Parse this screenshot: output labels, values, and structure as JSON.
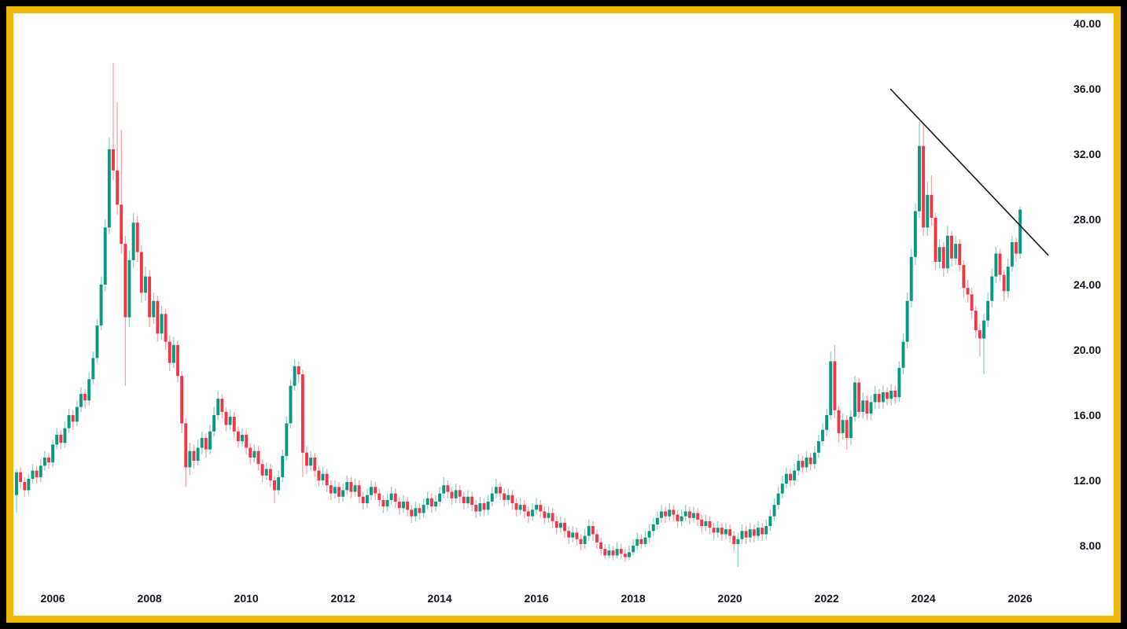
{
  "frame": {
    "outer_color": "#000000",
    "border_color": "#F0B90B",
    "background_color": "#FFFFFF",
    "text_color": "#131722"
  },
  "chart_data": {
    "type": "candlestick",
    "title": "",
    "interval": "monthly",
    "start": "2005-04",
    "up_color": "#089981",
    "down_color": "#F23645",
    "wick_opacity": 0.45,
    "grid": "off",
    "x_axis": {
      "side": "bottom",
      "tick_labels": [
        "2006",
        "2008",
        "2010",
        "2012",
        "2014",
        "2016",
        "2018",
        "2020",
        "2022",
        "2024",
        "2026"
      ],
      "tick_years": [
        2006,
        2008,
        2010,
        2012,
        2014,
        2016,
        2018,
        2020,
        2022,
        2024,
        2026
      ]
    },
    "y_axis": {
      "side": "right",
      "tick_labels": [
        "40.00",
        "36.00",
        "32.00",
        "28.00",
        "24.00",
        "20.00",
        "16.00",
        "12.00",
        "8.00"
      ],
      "tick_values": [
        40,
        36,
        32,
        28,
        24,
        20,
        16,
        12,
        8
      ],
      "range": [
        6.2,
        40.6
      ]
    },
    "trendline": {
      "color": "#1a1a1a",
      "start": {
        "index": 216.8,
        "price": 36.0
      },
      "end": {
        "index": 256.0,
        "price": 25.8
      },
      "description": "descending resistance line from 2023 touching Dec-2023 high (~34) and 2024 highs; last candle closes above it"
    },
    "candles_format": [
      "open",
      "high",
      "low",
      "close"
    ],
    "candles": [
      [
        11.1,
        12.7,
        10.0,
        12.5
      ],
      [
        12.5,
        12.8,
        11.5,
        11.9
      ],
      [
        11.9,
        12.2,
        11.0,
        11.4
      ],
      [
        11.4,
        12.4,
        11.1,
        12.1
      ],
      [
        12.1,
        13.0,
        11.8,
        12.6
      ],
      [
        12.6,
        12.9,
        11.8,
        12.2
      ],
      [
        12.2,
        13.3,
        11.9,
        12.9
      ],
      [
        12.9,
        13.8,
        12.6,
        13.4
      ],
      [
        13.4,
        13.7,
        12.7,
        13.1
      ],
      [
        13.1,
        14.5,
        12.8,
        14.2
      ],
      [
        14.2,
        15.2,
        13.9,
        14.8
      ],
      [
        14.8,
        15.1,
        13.9,
        14.3
      ],
      [
        14.3,
        15.6,
        14.0,
        15.2
      ],
      [
        15.2,
        16.4,
        14.9,
        16.0
      ],
      [
        16.0,
        16.3,
        15.1,
        15.6
      ],
      [
        15.6,
        16.9,
        15.3,
        16.5
      ],
      [
        16.5,
        17.7,
        16.2,
        17.3
      ],
      [
        17.3,
        17.6,
        16.4,
        16.9
      ],
      [
        16.9,
        18.6,
        16.6,
        18.2
      ],
      [
        18.2,
        19.9,
        17.9,
        19.5
      ],
      [
        19.5,
        21.9,
        19.2,
        21.5
      ],
      [
        21.5,
        24.5,
        21.2,
        24.0
      ],
      [
        24.0,
        28.0,
        23.6,
        27.5
      ],
      [
        27.5,
        33.0,
        27.1,
        32.3
      ],
      [
        32.3,
        37.6,
        30.4,
        31.0
      ],
      [
        31.0,
        35.2,
        28.3,
        28.9
      ],
      [
        28.9,
        33.5,
        25.9,
        26.5
      ],
      [
        26.5,
        27.0,
        17.8,
        22.0
      ],
      [
        22.0,
        26.1,
        21.4,
        25.5
      ],
      [
        25.5,
        28.4,
        25.0,
        27.8
      ],
      [
        27.8,
        28.2,
        25.4,
        26.0
      ],
      [
        26.0,
        26.4,
        22.9,
        23.5
      ],
      [
        23.5,
        25.1,
        23.0,
        24.5
      ],
      [
        24.5,
        24.9,
        21.4,
        22.0
      ],
      [
        22.0,
        23.5,
        21.6,
        23.0
      ],
      [
        23.0,
        23.3,
        20.5,
        21.0
      ],
      [
        21.0,
        22.7,
        20.6,
        22.2
      ],
      [
        22.2,
        22.5,
        20.0,
        20.5
      ],
      [
        20.5,
        20.9,
        18.7,
        19.2
      ],
      [
        19.2,
        20.8,
        18.9,
        20.3
      ],
      [
        20.3,
        20.6,
        18.0,
        18.4
      ],
      [
        18.4,
        18.7,
        14.9,
        15.5
      ],
      [
        15.5,
        15.8,
        11.6,
        12.8
      ],
      [
        12.8,
        14.3,
        12.3,
        13.8
      ],
      [
        13.8,
        14.2,
        12.7,
        13.2
      ],
      [
        13.2,
        14.5,
        12.9,
        14.0
      ],
      [
        14.0,
        15.0,
        13.6,
        14.6
      ],
      [
        14.6,
        14.9,
        13.4,
        13.9
      ],
      [
        13.9,
        15.4,
        13.6,
        15.0
      ],
      [
        15.0,
        16.5,
        14.7,
        16.0
      ],
      [
        16.0,
        17.5,
        15.7,
        17.0
      ],
      [
        17.0,
        17.3,
        15.8,
        16.2
      ],
      [
        16.2,
        16.5,
        15.0,
        15.4
      ],
      [
        15.4,
        16.3,
        15.1,
        15.9
      ],
      [
        15.9,
        16.2,
        14.6,
        15.0
      ],
      [
        15.0,
        15.3,
        14.0,
        14.4
      ],
      [
        14.4,
        15.2,
        14.1,
        14.8
      ],
      [
        14.8,
        15.1,
        13.6,
        14.0
      ],
      [
        14.0,
        14.3,
        13.0,
        13.4
      ],
      [
        13.4,
        14.2,
        13.1,
        13.8
      ],
      [
        13.8,
        14.1,
        12.6,
        13.0
      ],
      [
        13.0,
        13.3,
        11.9,
        12.3
      ],
      [
        12.3,
        13.1,
        12.0,
        12.7
      ],
      [
        12.7,
        13.0,
        11.6,
        12.0
      ],
      [
        12.0,
        12.3,
        10.6,
        11.4
      ],
      [
        11.4,
        12.6,
        11.1,
        12.2
      ],
      [
        12.2,
        13.9,
        11.9,
        13.5
      ],
      [
        13.5,
        15.9,
        13.2,
        15.5
      ],
      [
        15.5,
        18.2,
        15.2,
        17.8
      ],
      [
        17.8,
        19.4,
        17.5,
        19.0
      ],
      [
        19.0,
        19.3,
        18.0,
        18.5
      ],
      [
        18.5,
        18.8,
        12.2,
        13.7
      ],
      [
        13.7,
        14.1,
        12.4,
        12.9
      ],
      [
        12.9,
        13.8,
        12.6,
        13.4
      ],
      [
        13.4,
        13.7,
        12.2,
        12.6
      ],
      [
        12.6,
        12.9,
        11.6,
        12.0
      ],
      [
        12.0,
        12.8,
        11.7,
        12.4
      ],
      [
        12.4,
        12.7,
        11.3,
        11.7
      ],
      [
        11.7,
        12.0,
        10.8,
        11.2
      ],
      [
        11.2,
        12.0,
        10.9,
        11.6
      ],
      [
        11.6,
        11.9,
        10.6,
        11.0
      ],
      [
        11.0,
        11.8,
        10.7,
        11.4
      ],
      [
        11.4,
        12.3,
        11.1,
        11.9
      ],
      [
        11.9,
        12.2,
        10.9,
        11.3
      ],
      [
        11.3,
        12.1,
        11.0,
        11.7
      ],
      [
        11.7,
        12.0,
        10.6,
        11.0
      ],
      [
        11.0,
        11.3,
        10.2,
        10.6
      ],
      [
        10.6,
        11.5,
        10.3,
        11.1
      ],
      [
        11.1,
        12.0,
        10.8,
        11.6
      ],
      [
        11.6,
        11.9,
        10.8,
        11.2
      ],
      [
        11.2,
        11.5,
        10.4,
        10.8
      ],
      [
        10.8,
        11.1,
        10.0,
        10.4
      ],
      [
        10.4,
        11.2,
        10.1,
        10.8
      ],
      [
        10.8,
        11.6,
        10.5,
        11.2
      ],
      [
        11.2,
        11.5,
        10.3,
        10.7
      ],
      [
        10.7,
        11.0,
        9.9,
        10.3
      ],
      [
        10.3,
        11.1,
        10.0,
        10.7
      ],
      [
        10.7,
        11.0,
        9.8,
        10.2
      ],
      [
        10.2,
        10.5,
        9.4,
        9.8
      ],
      [
        9.8,
        10.7,
        9.5,
        10.3
      ],
      [
        10.3,
        10.6,
        9.6,
        10.0
      ],
      [
        10.0,
        10.9,
        9.7,
        10.5
      ],
      [
        10.5,
        11.3,
        10.2,
        10.9
      ],
      [
        10.9,
        11.2,
        10.0,
        10.4
      ],
      [
        10.4,
        11.1,
        10.1,
        10.7
      ],
      [
        10.7,
        11.6,
        10.4,
        11.2
      ],
      [
        11.2,
        12.2,
        10.9,
        11.7
      ],
      [
        11.7,
        12.0,
        10.9,
        11.3
      ],
      [
        11.3,
        11.6,
        10.5,
        10.9
      ],
      [
        10.9,
        11.8,
        10.6,
        11.4
      ],
      [
        11.4,
        11.7,
        10.6,
        11.0
      ],
      [
        11.0,
        11.3,
        10.2,
        10.6
      ],
      [
        10.6,
        11.4,
        10.3,
        11.0
      ],
      [
        11.0,
        11.3,
        10.1,
        10.5
      ],
      [
        10.5,
        10.8,
        9.7,
        10.1
      ],
      [
        10.1,
        11.0,
        9.8,
        10.6
      ],
      [
        10.6,
        10.9,
        9.8,
        10.2
      ],
      [
        10.2,
        11.1,
        9.9,
        10.7
      ],
      [
        10.7,
        11.6,
        10.4,
        11.2
      ],
      [
        11.2,
        12.1,
        10.9,
        11.6
      ],
      [
        11.6,
        11.9,
        10.8,
        11.2
      ],
      [
        11.2,
        11.5,
        10.4,
        10.8
      ],
      [
        10.8,
        11.5,
        10.5,
        11.1
      ],
      [
        11.1,
        11.4,
        10.2,
        10.6
      ],
      [
        10.6,
        10.9,
        9.8,
        10.2
      ],
      [
        10.2,
        10.9,
        9.9,
        10.5
      ],
      [
        10.5,
        10.8,
        9.7,
        10.1
      ],
      [
        10.1,
        10.4,
        9.4,
        9.8
      ],
      [
        9.8,
        10.6,
        9.5,
        10.2
      ],
      [
        10.2,
        10.9,
        9.9,
        10.5
      ],
      [
        10.5,
        10.8,
        9.7,
        10.1
      ],
      [
        10.1,
        10.4,
        9.3,
        9.7
      ],
      [
        9.7,
        10.4,
        9.4,
        10.0
      ],
      [
        10.0,
        10.3,
        9.1,
        9.5
      ],
      [
        9.5,
        9.8,
        8.7,
        9.1
      ],
      [
        9.1,
        9.8,
        8.8,
        9.4
      ],
      [
        9.4,
        9.7,
        8.5,
        8.9
      ],
      [
        8.9,
        9.2,
        8.1,
        8.5
      ],
      [
        8.5,
        9.2,
        8.2,
        8.8
      ],
      [
        8.8,
        9.1,
        8.0,
        8.4
      ],
      [
        8.4,
        8.7,
        7.7,
        8.1
      ],
      [
        8.1,
        9.0,
        7.8,
        8.6
      ],
      [
        8.6,
        9.6,
        8.3,
        9.2
      ],
      [
        9.2,
        9.5,
        8.3,
        8.7
      ],
      [
        8.7,
        9.0,
        7.8,
        8.2
      ],
      [
        8.2,
        8.5,
        7.4,
        7.8
      ],
      [
        7.8,
        8.1,
        7.2,
        7.4
      ],
      [
        7.4,
        8.1,
        7.2,
        7.7
      ],
      [
        7.7,
        8.0,
        7.1,
        7.4
      ],
      [
        7.4,
        8.2,
        7.2,
        7.8
      ],
      [
        7.8,
        8.1,
        7.2,
        7.5
      ],
      [
        7.5,
        7.8,
        7.0,
        7.3
      ],
      [
        7.3,
        8.0,
        7.1,
        7.6
      ],
      [
        7.6,
        8.4,
        7.4,
        8.0
      ],
      [
        8.0,
        8.8,
        7.7,
        8.4
      ],
      [
        8.4,
        8.7,
        7.8,
        8.1
      ],
      [
        8.1,
        8.9,
        7.9,
        8.5
      ],
      [
        8.5,
        9.3,
        8.2,
        8.9
      ],
      [
        8.9,
        9.7,
        8.6,
        9.3
      ],
      [
        9.3,
        10.1,
        9.0,
        9.7
      ],
      [
        9.7,
        10.5,
        9.4,
        10.1
      ],
      [
        10.1,
        10.4,
        9.4,
        9.8
      ],
      [
        9.8,
        10.6,
        9.5,
        10.2
      ],
      [
        10.2,
        10.5,
        9.5,
        9.9
      ],
      [
        9.9,
        10.2,
        9.1,
        9.5
      ],
      [
        9.5,
        10.2,
        9.2,
        9.8
      ],
      [
        9.8,
        10.5,
        9.5,
        10.1
      ],
      [
        10.1,
        10.4,
        9.3,
        9.7
      ],
      [
        9.7,
        10.4,
        9.4,
        10.0
      ],
      [
        10.0,
        10.3,
        9.2,
        9.6
      ],
      [
        9.6,
        9.9,
        8.8,
        9.2
      ],
      [
        9.2,
        9.9,
        8.9,
        9.5
      ],
      [
        9.5,
        9.8,
        8.7,
        9.1
      ],
      [
        9.1,
        9.4,
        8.4,
        8.8
      ],
      [
        8.8,
        9.5,
        8.5,
        9.1
      ],
      [
        9.1,
        9.4,
        8.3,
        8.7
      ],
      [
        8.7,
        9.4,
        8.4,
        9.0
      ],
      [
        9.0,
        9.3,
        8.2,
        8.6
      ],
      [
        8.6,
        8.9,
        7.7,
        8.1
      ],
      [
        8.1,
        8.8,
        6.7,
        8.4
      ],
      [
        8.4,
        9.3,
        8.1,
        8.9
      ],
      [
        8.9,
        9.2,
        8.1,
        8.5
      ],
      [
        8.5,
        9.4,
        8.2,
        9.0
      ],
      [
        9.0,
        9.3,
        8.2,
        8.6
      ],
      [
        8.6,
        9.5,
        8.3,
        9.1
      ],
      [
        9.1,
        9.4,
        8.3,
        8.7
      ],
      [
        8.7,
        9.6,
        8.4,
        9.2
      ],
      [
        9.2,
        10.2,
        8.9,
        9.8
      ],
      [
        9.8,
        10.9,
        9.5,
        10.5
      ],
      [
        10.5,
        11.6,
        10.2,
        11.2
      ],
      [
        11.2,
        12.3,
        10.9,
        11.8
      ],
      [
        11.8,
        12.8,
        11.5,
        12.4
      ],
      [
        12.4,
        12.7,
        11.6,
        12.0
      ],
      [
        12.0,
        13.0,
        11.7,
        12.6
      ],
      [
        12.6,
        13.6,
        12.3,
        13.2
      ],
      [
        13.2,
        13.5,
        12.4,
        12.8
      ],
      [
        12.8,
        13.8,
        12.5,
        13.4
      ],
      [
        13.4,
        13.7,
        12.6,
        13.0
      ],
      [
        13.0,
        14.1,
        12.7,
        13.7
      ],
      [
        13.7,
        14.8,
        13.4,
        14.4
      ],
      [
        14.4,
        15.5,
        14.1,
        15.1
      ],
      [
        15.1,
        16.4,
        14.7,
        16.0
      ],
      [
        16.0,
        19.9,
        15.7,
        19.3
      ],
      [
        19.3,
        20.3,
        15.8,
        16.3
      ],
      [
        16.3,
        16.6,
        14.3,
        14.9
      ],
      [
        14.9,
        16.1,
        14.5,
        15.7
      ],
      [
        15.7,
        16.0,
        13.9,
        14.6
      ],
      [
        14.6,
        16.3,
        14.2,
        15.9
      ],
      [
        15.9,
        18.4,
        15.6,
        18.0
      ],
      [
        18.0,
        18.3,
        15.8,
        16.2
      ],
      [
        16.2,
        17.4,
        15.8,
        16.9
      ],
      [
        16.9,
        17.2,
        15.7,
        16.1
      ],
      [
        16.1,
        17.2,
        15.7,
        16.8
      ],
      [
        16.8,
        17.8,
        16.4,
        17.3
      ],
      [
        17.3,
        17.6,
        16.4,
        16.8
      ],
      [
        16.8,
        17.8,
        16.4,
        17.4
      ],
      [
        17.4,
        17.7,
        16.6,
        17.0
      ],
      [
        17.0,
        17.9,
        16.6,
        17.5
      ],
      [
        17.5,
        17.8,
        16.7,
        17.1
      ],
      [
        17.1,
        19.3,
        16.8,
        18.9
      ],
      [
        18.9,
        21.0,
        18.5,
        20.5
      ],
      [
        20.5,
        23.5,
        20.1,
        23.0
      ],
      [
        23.0,
        26.2,
        22.6,
        25.7
      ],
      [
        25.7,
        29.0,
        25.2,
        28.5
      ],
      [
        28.5,
        34.0,
        28.1,
        32.5
      ],
      [
        32.5,
        33.8,
        27.0,
        27.5
      ],
      [
        27.5,
        30.3,
        27.0,
        29.5
      ],
      [
        29.5,
        30.7,
        27.6,
        28.1
      ],
      [
        28.1,
        28.4,
        24.9,
        25.4
      ],
      [
        25.4,
        26.8,
        25.0,
        26.3
      ],
      [
        26.3,
        26.6,
        24.5,
        25.0
      ],
      [
        25.0,
        27.6,
        24.7,
        27.0
      ],
      [
        27.0,
        27.3,
        25.1,
        25.6
      ],
      [
        25.6,
        27.0,
        25.2,
        26.5
      ],
      [
        26.5,
        26.8,
        24.8,
        25.2
      ],
      [
        25.2,
        25.5,
        23.2,
        23.8
      ],
      [
        23.8,
        24.3,
        22.9,
        23.4
      ],
      [
        23.4,
        23.8,
        21.9,
        22.4
      ],
      [
        22.4,
        22.7,
        20.7,
        21.2
      ],
      [
        21.2,
        21.6,
        19.6,
        20.7
      ],
      [
        20.7,
        22.2,
        18.5,
        21.8
      ],
      [
        21.8,
        23.5,
        21.4,
        23.0
      ],
      [
        23.0,
        25.0,
        22.6,
        24.5
      ],
      [
        24.5,
        26.3,
        24.1,
        25.9
      ],
      [
        25.9,
        26.2,
        24.2,
        24.6
      ],
      [
        24.6,
        24.9,
        23.0,
        23.6
      ],
      [
        23.6,
        25.6,
        23.2,
        25.1
      ],
      [
        25.1,
        27.0,
        24.8,
        26.6
      ],
      [
        26.6,
        26.9,
        25.4,
        25.9
      ],
      [
        25.9,
        28.8,
        25.6,
        28.6
      ]
    ]
  }
}
